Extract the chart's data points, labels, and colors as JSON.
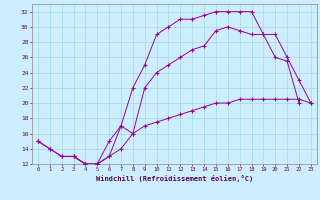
{
  "xlabel": "Windchill (Refroidissement éolien,°C)",
  "background_color": "#cceeff",
  "grid_color": "#aadddd",
  "line_color": "#990099",
  "xlim": [
    -0.5,
    23.5
  ],
  "ylim": [
    12,
    33
  ],
  "yticks": [
    12,
    14,
    16,
    18,
    20,
    22,
    24,
    26,
    28,
    30,
    32
  ],
  "xticks": [
    0,
    1,
    2,
    3,
    4,
    5,
    6,
    7,
    8,
    9,
    10,
    11,
    12,
    13,
    14,
    15,
    16,
    17,
    18,
    19,
    20,
    21,
    22,
    23
  ],
  "line1_x": [
    0,
    1,
    2,
    3,
    4,
    5,
    6,
    7,
    8,
    9,
    10,
    11,
    12,
    13,
    14,
    15,
    16,
    17,
    18,
    19,
    20,
    21,
    22,
    23
  ],
  "line1_y": [
    15,
    14,
    13,
    13,
    12,
    12,
    13,
    14,
    16,
    17,
    17.5,
    18,
    18.5,
    19,
    19.5,
    20,
    20,
    20.5,
    20.5,
    20.5,
    20.5,
    20.5,
    20.5,
    20
  ],
  "line2_x": [
    0,
    1,
    2,
    3,
    4,
    5,
    6,
    7,
    8,
    9,
    10,
    11,
    12,
    13,
    14,
    15,
    16,
    17,
    18,
    19,
    20,
    21,
    22
  ],
  "line2_y": [
    15,
    14,
    13,
    13,
    12,
    12,
    13,
    17,
    22,
    25,
    29,
    30,
    31,
    31,
    31.5,
    32,
    32,
    32,
    32,
    29,
    26,
    25.5,
    20
  ],
  "line3_x": [
    3,
    4,
    5,
    6,
    7,
    8,
    9,
    10,
    11,
    12,
    13,
    14,
    15,
    16,
    17,
    18,
    19,
    20,
    21,
    22,
    23
  ],
  "line3_y": [
    13,
    12,
    12,
    15,
    17,
    16,
    22,
    24,
    25,
    26,
    27,
    27.5,
    29.5,
    30,
    29.5,
    29,
    29,
    29,
    26,
    23,
    20
  ]
}
